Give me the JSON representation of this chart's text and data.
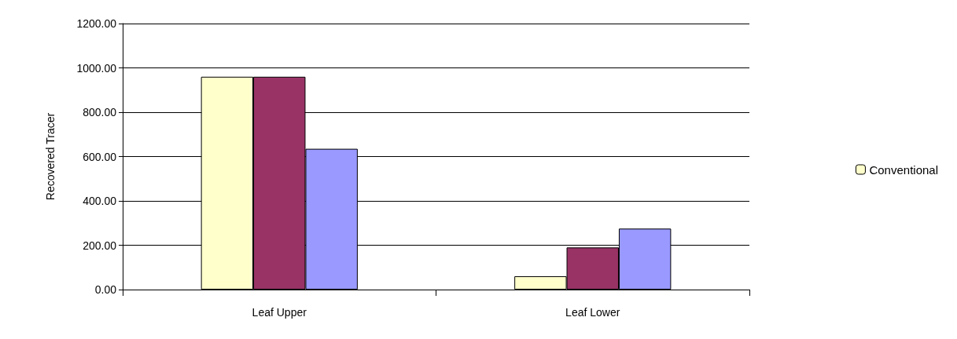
{
  "chart_data": {
    "type": "bar",
    "ylabel": "Recovered Tracer",
    "categories": [
      "Leaf Upper",
      "Leaf Lower"
    ],
    "series": [
      {
        "name": "Conventional",
        "color": "#ffffcc",
        "values": [
          960,
          60
        ]
      },
      {
        "color": "#993366",
        "values": [
          960,
          190
        ]
      },
      {
        "color": "#9999ff",
        "values": [
          635,
          275
        ]
      }
    ],
    "ylim": [
      0,
      1200
    ],
    "yticks": [
      {
        "value": 0,
        "label": "0.00"
      },
      {
        "value": 200,
        "label": "200.00"
      },
      {
        "value": 400,
        "label": "400.00"
      },
      {
        "value": 600,
        "label": "600.00"
      },
      {
        "value": 800,
        "label": "800.00"
      },
      {
        "value": 1000,
        "label": "1000.00"
      },
      {
        "value": 1200,
        "label": "1200.00"
      }
    ],
    "grid": "y",
    "legend": "right"
  }
}
